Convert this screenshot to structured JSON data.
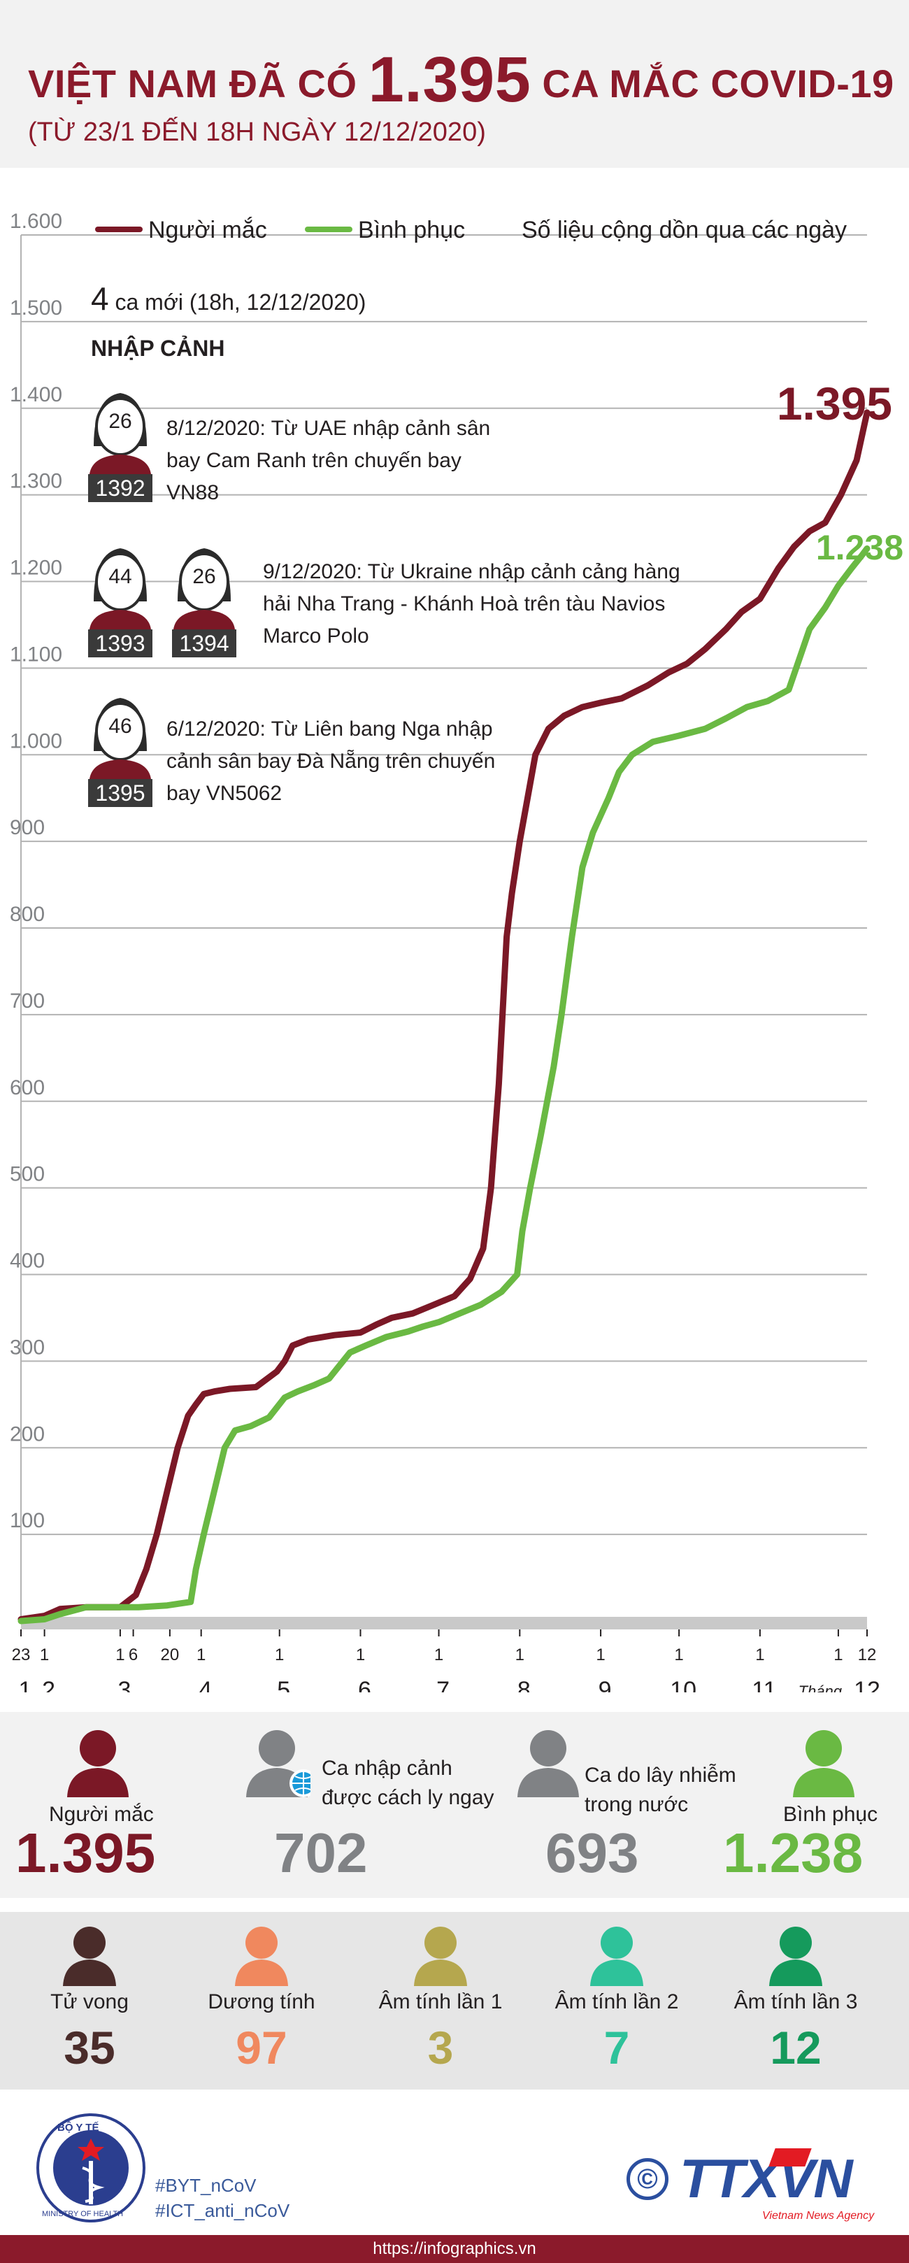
{
  "header": {
    "title_pre": "VIỆT NAM ĐÃ CÓ",
    "title_num": "1.395",
    "title_post": "CA MẮC COVID-19",
    "subtitle": "(TỪ 23/1 ĐẾN 18H NGÀY 12/12/2020)"
  },
  "legend": {
    "infected": "Người mắc",
    "recovered": "Bình phục",
    "note": "Số liệu cộng dồn qua các ngày"
  },
  "annotation": {
    "new_count": "4",
    "new_text": "ca mới (18h, 12/12/2020)",
    "section": "NHẬP CẢNH",
    "cases": [
      {
        "ages": [
          "26"
        ],
        "ids": [
          "1392"
        ],
        "text": "8/12/2020: Từ UAE nhập cảnh sân bay Cam Ranh trên chuyến bay VN88"
      },
      {
        "ages": [
          "44",
          "26"
        ],
        "ids": [
          "1393",
          "1394"
        ],
        "text": "9/12/2020: Từ Ukraine nhập cảnh cảng hàng hải Nha Trang - Khánh Hoà trên tàu Navios Marco Polo"
      },
      {
        "ages": [
          "46"
        ],
        "ids": [
          "1395"
        ],
        "text": "6/12/2020: Từ Liên bang Nga nhập cảnh sân bay Đà Nẵng trên chuyến bay VN5062"
      }
    ]
  },
  "chart_data": {
    "type": "line",
    "ylim": [
      0,
      1600
    ],
    "yticks": [
      {
        "v": 100,
        "label": "100"
      },
      {
        "v": 200,
        "label": "200"
      },
      {
        "v": 300,
        "label": "300"
      },
      {
        "v": 400,
        "label": "400"
      },
      {
        "v": 500,
        "label": "500"
      },
      {
        "v": 600,
        "label": "600"
      },
      {
        "v": 700,
        "label": "700"
      },
      {
        "v": 800,
        "label": "800"
      },
      {
        "v": 900,
        "label": "900"
      },
      {
        "v": 1000,
        "label": "1.000"
      },
      {
        "v": 1100,
        "label": "1.100"
      },
      {
        "v": 1200,
        "label": "1.200"
      },
      {
        "v": 1300,
        "label": "1.300"
      },
      {
        "v": 1400,
        "label": "1.400"
      },
      {
        "v": 1500,
        "label": "1.500"
      },
      {
        "v": 1600,
        "label": "1.600"
      }
    ],
    "day_ticks": [
      {
        "t": 0,
        "label": "23"
      },
      {
        "t": 9,
        "label": "1"
      },
      {
        "t": 38,
        "label": "1"
      },
      {
        "t": 43,
        "label": "6"
      },
      {
        "t": 57,
        "label": "20"
      },
      {
        "t": 69,
        "label": "1"
      },
      {
        "t": 99,
        "label": "1"
      },
      {
        "t": 130,
        "label": "1"
      },
      {
        "t": 160,
        "label": "1"
      },
      {
        "t": 191,
        "label": "1"
      },
      {
        "t": 222,
        "label": "1"
      },
      {
        "t": 252,
        "label": "1"
      },
      {
        "t": 283,
        "label": "1"
      },
      {
        "t": 313,
        "label": "1"
      },
      {
        "t": 324,
        "label": "12"
      }
    ],
    "month_ticks": [
      {
        "t": 0,
        "label": "1"
      },
      {
        "t": 9,
        "label": "2"
      },
      {
        "t": 38,
        "label": "3"
      },
      {
        "t": 69,
        "label": "4"
      },
      {
        "t": 99,
        "label": "5"
      },
      {
        "t": 130,
        "label": "6"
      },
      {
        "t": 160,
        "label": "7"
      },
      {
        "t": 191,
        "label": "8"
      },
      {
        "t": 222,
        "label": "9"
      },
      {
        "t": 252,
        "label": "10"
      },
      {
        "t": 283,
        "label": "11"
      },
      {
        "t": 324,
        "label": "12"
      }
    ],
    "month_axis_label": "Tháng",
    "series": [
      {
        "name": "Người mắc",
        "color": "#7b1826",
        "end_label": "1.395",
        "points": [
          [
            0,
            2
          ],
          [
            9,
            6
          ],
          [
            15,
            14
          ],
          [
            25,
            16
          ],
          [
            38,
            16
          ],
          [
            44,
            30
          ],
          [
            48,
            60
          ],
          [
            52,
            100
          ],
          [
            56,
            150
          ],
          [
            60,
            200
          ],
          [
            64,
            237
          ],
          [
            67,
            250
          ],
          [
            70,
            262
          ],
          [
            74,
            265
          ],
          [
            80,
            268
          ],
          [
            90,
            270
          ],
          [
            98,
            288
          ],
          [
            101,
            300
          ],
          [
            104,
            318
          ],
          [
            110,
            325
          ],
          [
            120,
            330
          ],
          [
            130,
            333
          ],
          [
            136,
            342
          ],
          [
            142,
            350
          ],
          [
            150,
            355
          ],
          [
            158,
            365
          ],
          [
            166,
            375
          ],
          [
            172,
            395
          ],
          [
            177,
            430
          ],
          [
            180,
            500
          ],
          [
            183,
            620
          ],
          [
            186,
            790
          ],
          [
            188,
            840
          ],
          [
            191,
            900
          ],
          [
            194,
            950
          ],
          [
            197,
            1000
          ],
          [
            202,
            1030
          ],
          [
            208,
            1045
          ],
          [
            215,
            1055
          ],
          [
            222,
            1060
          ],
          [
            230,
            1065
          ],
          [
            240,
            1080
          ],
          [
            248,
            1095
          ],
          [
            255,
            1105
          ],
          [
            262,
            1122
          ],
          [
            270,
            1145
          ],
          [
            276,
            1165
          ],
          [
            283,
            1180
          ],
          [
            290,
            1215
          ],
          [
            296,
            1240
          ],
          [
            302,
            1258
          ],
          [
            308,
            1268
          ],
          [
            314,
            1300
          ],
          [
            320,
            1340
          ],
          [
            324,
            1395
          ]
        ]
      },
      {
        "name": "Bình phục",
        "color": "#6ab943",
        "end_label": "1.238",
        "points": [
          [
            0,
            0
          ],
          [
            9,
            2
          ],
          [
            15,
            8
          ],
          [
            25,
            16
          ],
          [
            38,
            16
          ],
          [
            45,
            16
          ],
          [
            56,
            18
          ],
          [
            65,
            22
          ],
          [
            67,
            60
          ],
          [
            70,
            100
          ],
          [
            74,
            150
          ],
          [
            78,
            200
          ],
          [
            82,
            220
          ],
          [
            88,
            225
          ],
          [
            95,
            235
          ],
          [
            101,
            258
          ],
          [
            106,
            265
          ],
          [
            112,
            272
          ],
          [
            118,
            280
          ],
          [
            122,
            295
          ],
          [
            126,
            310
          ],
          [
            132,
            318
          ],
          [
            140,
            328
          ],
          [
            148,
            334
          ],
          [
            154,
            340
          ],
          [
            160,
            345
          ],
          [
            168,
            355
          ],
          [
            176,
            365
          ],
          [
            184,
            380
          ],
          [
            190,
            400
          ],
          [
            192,
            450
          ],
          [
            195,
            500
          ],
          [
            199,
            560
          ],
          [
            204,
            640
          ],
          [
            207,
            700
          ],
          [
            211,
            790
          ],
          [
            215,
            870
          ],
          [
            219,
            910
          ],
          [
            225,
            950
          ],
          [
            229,
            980
          ],
          [
            234,
            1000
          ],
          [
            242,
            1015
          ],
          [
            252,
            1022
          ],
          [
            262,
            1030
          ],
          [
            270,
            1042
          ],
          [
            278,
            1055
          ],
          [
            286,
            1062
          ],
          [
            294,
            1075
          ],
          [
            298,
            1110
          ],
          [
            302,
            1145
          ],
          [
            308,
            1170
          ],
          [
            313,
            1195
          ],
          [
            318,
            1215
          ],
          [
            322,
            1230
          ],
          [
            324,
            1238
          ]
        ]
      }
    ]
  },
  "stats_main": [
    {
      "label": "Người mắc",
      "value": "1.395",
      "color": "#7b1826",
      "icon": "person-icon"
    },
    {
      "label": "Ca nhập cảnh được cách ly ngay",
      "value": "702",
      "color": "#808285",
      "icon": "person-globe-icon"
    },
    {
      "label": "Ca do lây nhiễm trong nước",
      "value": "693",
      "color": "#808285",
      "icon": "person-icon"
    },
    {
      "label": "Bình phục",
      "value": "1.238",
      "color": "#6ab943",
      "icon": "person-icon"
    }
  ],
  "stats_sub": [
    {
      "label": "Tử vong",
      "value": "35",
      "color": "#4a2c2a"
    },
    {
      "label": "Dương tính",
      "value": "97",
      "color": "#f0885e"
    },
    {
      "label": "Âm tính lần 1",
      "value": "3",
      "color": "#b5a74e"
    },
    {
      "label": "Âm tính lần 2",
      "value": "7",
      "color": "#2ec29a"
    },
    {
      "label": "Âm tính lần 3",
      "value": "12",
      "color": "#159a5c"
    }
  ],
  "footer": {
    "logo_text_top": "BỘ Y TẾ",
    "logo_text_bottom": "MINISTRY OF HEALTH",
    "tag1": "#BYT_nCoV",
    "tag2": "#ICT_anti_nCoV",
    "brand": "TTXVN",
    "brand_sub": "Vietnam News Agency",
    "copyright": "©",
    "url": "https://infographics.vn"
  }
}
